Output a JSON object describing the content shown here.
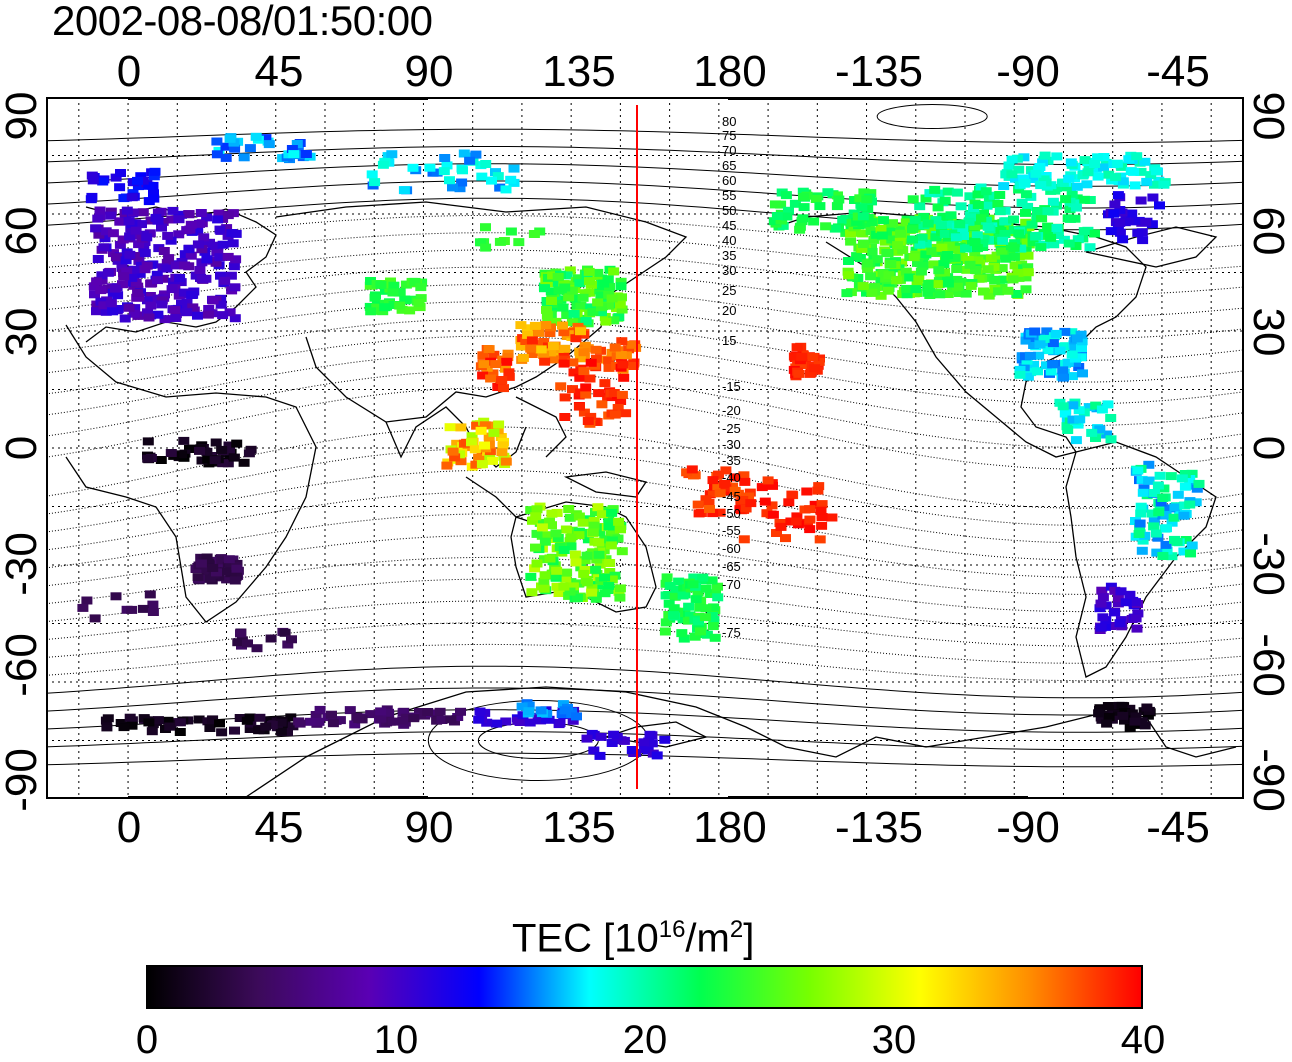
{
  "timestamp": "2002-08-08/01:50:00",
  "lon_ticks": [
    "0",
    "45",
    "90",
    "135",
    "180",
    "-135",
    "-90",
    "-45"
  ],
  "lat_ticks": [
    "90",
    "60",
    "30",
    "0",
    "-30",
    "-60",
    "-90"
  ],
  "colorbar": {
    "title_prefix": "TEC  [10",
    "title_exp1": "16",
    "title_mid": "/m",
    "title_exp2": "2",
    "title_suffix": "]",
    "ticks": [
      "0",
      "10",
      "20",
      "30",
      "40"
    ],
    "range": [
      0,
      40
    ],
    "colors": [
      "#000000",
      "#3c0a5a",
      "#5a00b4",
      "#0000ff",
      "#00ffff",
      "#00ff50",
      "#78ff00",
      "#ffff00",
      "#ff8c00",
      "#ff0000"
    ]
  },
  "overlay": {
    "meridian_longitude": 152,
    "meridian_color": "#ff0000",
    "contour_labels": [
      "80",
      "75",
      "70",
      "65",
      "60",
      "55",
      "50",
      "45",
      "40",
      "35",
      "30",
      "25",
      "20",
      "15",
      "-15",
      "-20",
      "-25",
      "-30",
      "-35",
      "-40",
      "-45",
      "-50",
      "-55",
      "-60",
      "-65",
      "-70",
      "-75"
    ]
  },
  "map": {
    "lon_range": [
      -25,
      340
    ],
    "lat_range": [
      -90,
      90
    ],
    "grid": "dotted 15 deg"
  }
}
